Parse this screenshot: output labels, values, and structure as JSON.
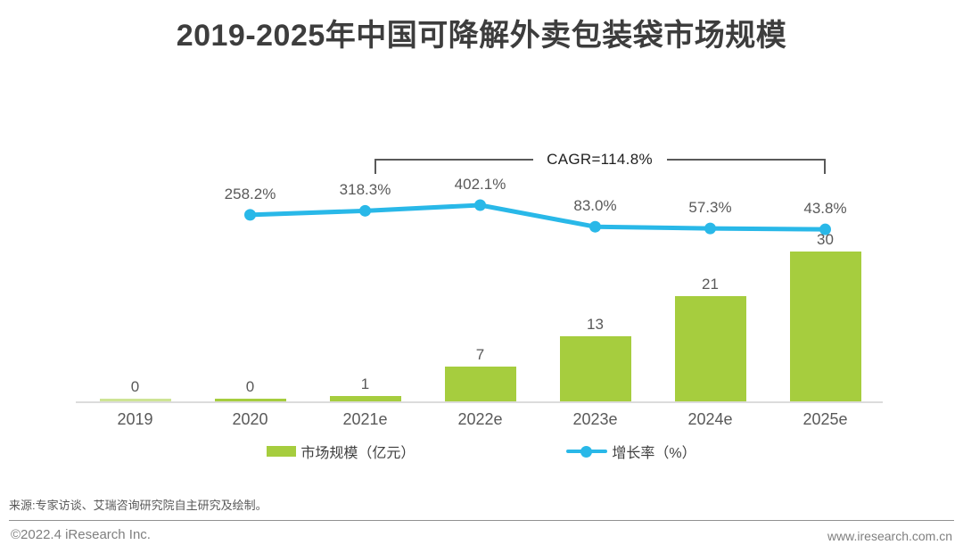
{
  "title": "2019-2025年中国可降解外卖包装袋市场规模",
  "chart_data": {
    "type": "bar+line",
    "categories": [
      "2019",
      "2020",
      "2021e",
      "2022e",
      "2023e",
      "2024e",
      "2025e"
    ],
    "series": [
      {
        "name": "市场规模（亿元）",
        "type": "bar",
        "values": [
          0,
          0,
          1,
          7,
          13,
          21,
          30
        ],
        "labels": [
          "0",
          "0",
          "1",
          "7",
          "13",
          "21",
          "30"
        ],
        "color": "#a6cd3e"
      },
      {
        "name": "增长率（%）",
        "type": "line",
        "values": [
          null,
          258.2,
          318.3,
          402.1,
          83.0,
          57.3,
          43.8
        ],
        "labels": [
          null,
          "258.2%",
          "318.3%",
          "402.1%",
          "83.0%",
          "57.3%",
          "43.8%"
        ],
        "color": "#29b8e8"
      }
    ],
    "annotations": [
      {
        "text": "CAGR=114.8%",
        "span": [
          "2021e",
          "2025e"
        ]
      }
    ],
    "legend_position": "bottom",
    "grid": false,
    "xlabel": "",
    "ylabel": ""
  },
  "legend": [
    {
      "label": "市场规模（亿元）",
      "swatch": "bar",
      "color": "#a6cd3e"
    },
    {
      "label": "增长率（%）",
      "swatch": "line",
      "color": "#29b8e8"
    }
  ],
  "source_note": "来源:专家访谈、艾瑞咨询研究院自主研究及绘制。",
  "footer": {
    "left": "©2022.4 iResearch Inc.",
    "right": "www.iresearch.com.cn"
  },
  "colors": {
    "bar_green": "#a6cd3e",
    "line_blue": "#29b8e8",
    "label_gray": "#595959",
    "title_gray": "#3d3d3d",
    "axis_gray": "#dcdcdc"
  }
}
